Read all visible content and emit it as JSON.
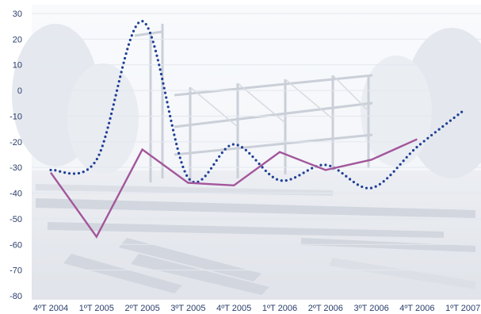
{
  "chart_data": {
    "type": "line",
    "categories": [
      "4ºT 2004",
      "1ºT 2005",
      "2ºT 2005",
      "3ºT 2005",
      "4ºT 2005",
      "1ºT 2006",
      "2ºT 2006",
      "3ºT 2006",
      "4ºT 2006",
      "1ºT 2007"
    ],
    "series": [
      {
        "style": "dotted",
        "color": "#1f3f96",
        "values": [
          -31,
          -27,
          27,
          -34,
          -21,
          -35,
          -29,
          -38,
          -22,
          -8
        ]
      },
      {
        "style": "solid",
        "color": "#a3569b",
        "values": [
          -32,
          -57,
          -23,
          -36,
          -37,
          -24,
          -31,
          -27,
          -19,
          null
        ]
      }
    ],
    "yticks": [
      30,
      20,
      10,
      0,
      -10,
      -20,
      -30,
      -40,
      -50,
      -60,
      -70,
      -80
    ],
    "ylim": [
      -80,
      30
    ],
    "grid": true,
    "background": "faded construction-site photograph"
  }
}
